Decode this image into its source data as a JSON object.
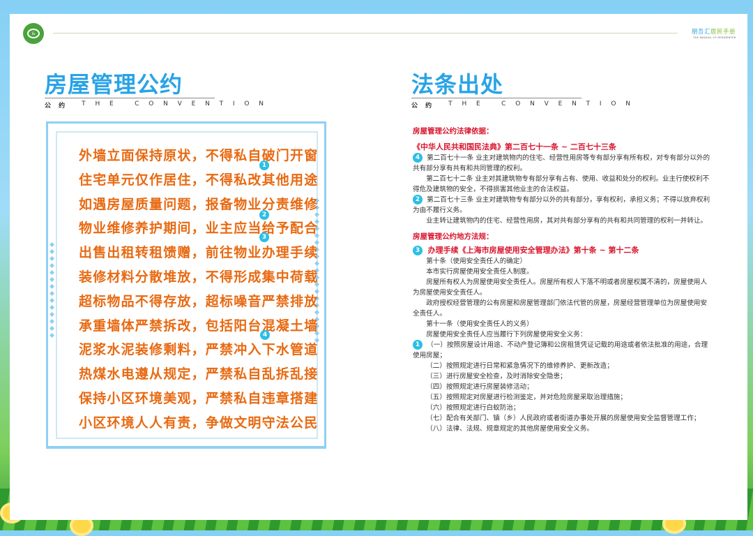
{
  "header": {
    "logo_text": "邦吾汇",
    "brand_part1": "朋吾汇",
    "brand_part2": "居民手册",
    "brand_sub": "THE MANUAL OF RESIDENTER"
  },
  "left": {
    "title": "房屋管理公约",
    "sub_cn": "公 约",
    "sub_en": "THE CONVENTION",
    "rules": [
      "外墙立面保持原状，不得私自破门开窗",
      "住宅单元仅作居住，不得私改其他用途",
      "如遇房屋质量问题，报备物业分责维修",
      "物业维修养护期间，业主应当给予配合",
      "出售出租转租馈赠，前往物业办理手续",
      "装修材料分散堆放，不得形成集中荷载",
      "超标物品不得存放，超标噪音严禁排放",
      "承重墙体严禁拆改，包括阳台混凝土墙",
      "泥浆水泥装修剩料，严禁冲入下水管道",
      "热煤水电遵从规定，严禁私自乱拆乱接",
      "保持小区环境美观，严禁私自违章搭建",
      "小区环境人人有责，争做文明守法公民"
    ],
    "badges": [
      "1",
      "2",
      "3",
      "4"
    ]
  },
  "right": {
    "title": "法条出处",
    "sub_cn": "公 约",
    "sub_en": "THE CONVENTION",
    "section1_heading": "房屋管理公约法律依据：",
    "section1_source": "《中华人民共和国民法典》第二百七十一条 ~ 二百七十三条",
    "s1_badge_a": "4",
    "s1_badge_b": "2",
    "s1_paras": [
      "第二百七十一条 业主对建筑物内的住宅、经营性用房等专有部分享有所有权，对专有部分以外的共有部分享有共有和共同管理的权利。",
      "第二百七十二条 业主对其建筑物专有部分享有占有、使用、收益和处分的权利。业主行使权利不得危及建筑物的安全，不得损害其他业主的合法权益。",
      "第二百七十三条 业主对建筑物专有部分以外的共有部分，享有权利，承担义务；不得以放弃权利为由不履行义务。",
      "业主转让建筑物内的住宅、经营性用房，其对共有部分享有的共有和共同管理的权利一并转让。"
    ],
    "section2_heading": "房屋管理公约地方法规：",
    "s2_badge": "3",
    "section2_source": "办理手续《上海市房屋使用安全管理办法》第十条 ~ 第十二条",
    "s2_paras": [
      "第十条（使用安全责任人的确定）",
      "本市实行房屋使用安全责任人制度。",
      "房屋所有权人为房屋使用安全责任人。房屋所有权人下落不明或者房屋权属不清的，房屋使用人为房屋使用安全责任人。",
      "政府授权经营管理的公有房屋和房屋管理部门依法代管的房屋，房屋经营管理单位为房屋使用安全责任人。",
      "第十一条（使用安全责任人的义务）",
      "房屋使用安全责任人应当履行下列房屋使用安全义务："
    ],
    "s2_badge_b": "1",
    "duties": [
      "（一）按照房屋设计用途、不动产登记簿和公房租赁凭证记载的用途或者依法批准的用途，合理使用房屋；",
      "（二）按照规定进行日常和紧急情况下的维修养护、更新改造；",
      "（三）进行房屋安全检查，及时消除安全隐患；",
      "（四）按照规定进行房屋装修活动；",
      "（五）按照规定对房屋进行检测鉴定，并对危险房屋采取治理措施；",
      "（六）按照规定进行白蚁防治；",
      "（七）配合有关部门、镇（乡）人民政府或者街道办事处开展的房屋使用安全监督管理工作；",
      "（八）法律、法规、规章规定的其他房屋使用安全义务。"
    ]
  },
  "colors": {
    "title": "#29a3e6",
    "rules": "#e86a12",
    "legal_heading": "#d8142c",
    "badge": "#2bbfe6"
  }
}
